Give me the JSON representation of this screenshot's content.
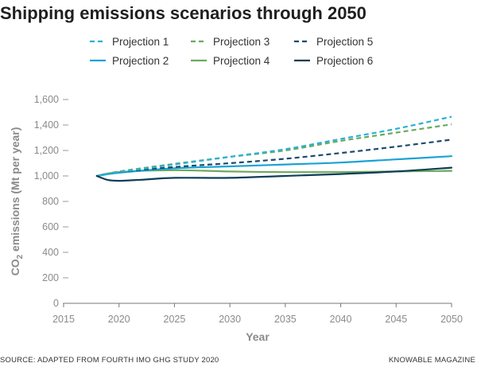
{
  "title": "Shipping emissions scenarios through 2050",
  "source": "SOURCE: ADAPTED FROM FOURTH IMO GHG STUDY 2020",
  "credit": "KNOWABLE MAGAZINE",
  "chart_data": {
    "type": "line",
    "xlabel": "Year",
    "ylabel_main": "CO",
    "ylabel_sub": "2",
    "ylabel_rest": " emissions (Mt per year)",
    "xlim": [
      2015,
      2050
    ],
    "ylim": [
      0,
      1600
    ],
    "x_ticks": [
      "2015",
      "2020",
      "2025",
      "2030",
      "2035",
      "2040",
      "2045",
      "2050"
    ],
    "y_ticks": [
      "0",
      "200",
      "400",
      "600",
      "800",
      "1,000",
      "1,200",
      "1,400",
      "1,600"
    ],
    "grid": false,
    "legend_position": "top",
    "series": [
      {
        "name": "Projection 1",
        "color": "#2ab0d8",
        "dashed": true,
        "x": [
          2018,
          2020,
          2025,
          2030,
          2035,
          2040,
          2045,
          2050
        ],
        "y": [
          1000,
          1030,
          1090,
          1150,
          1210,
          1290,
          1370,
          1465
        ]
      },
      {
        "name": "Projection 3",
        "color": "#6aaa5c",
        "dashed": true,
        "x": [
          2018,
          2020,
          2025,
          2030,
          2035,
          2040,
          2045,
          2050
        ],
        "y": [
          1000,
          1035,
          1095,
          1150,
          1200,
          1275,
          1340,
          1405
        ]
      },
      {
        "name": "Projection 5",
        "color": "#1c4a6e",
        "dashed": true,
        "x": [
          2018,
          2020,
          2025,
          2030,
          2035,
          2040,
          2045,
          2050
        ],
        "y": [
          1000,
          1030,
          1070,
          1100,
          1135,
          1180,
          1230,
          1285
        ]
      },
      {
        "name": "Projection 2",
        "color": "#1aa3d6",
        "dashed": false,
        "x": [
          2018,
          2020,
          2025,
          2030,
          2035,
          2040,
          2045,
          2050
        ],
        "y": [
          1000,
          1025,
          1060,
          1075,
          1090,
          1105,
          1130,
          1155
        ]
      },
      {
        "name": "Projection 4",
        "color": "#6aaa5c",
        "dashed": false,
        "x": [
          2018,
          2020,
          2025,
          2030,
          2035,
          2040,
          2045,
          2050
        ],
        "y": [
          1000,
          1030,
          1045,
          1035,
          1030,
          1030,
          1035,
          1040
        ]
      },
      {
        "name": "Projection 6",
        "color": "#0f3d5a",
        "dashed": false,
        "x": [
          2018,
          2019,
          2020,
          2022,
          2025,
          2030,
          2035,
          2040,
          2045,
          2050
        ],
        "y": [
          1000,
          968,
          962,
          970,
          985,
          985,
          1000,
          1015,
          1035,
          1065
        ]
      }
    ]
  }
}
